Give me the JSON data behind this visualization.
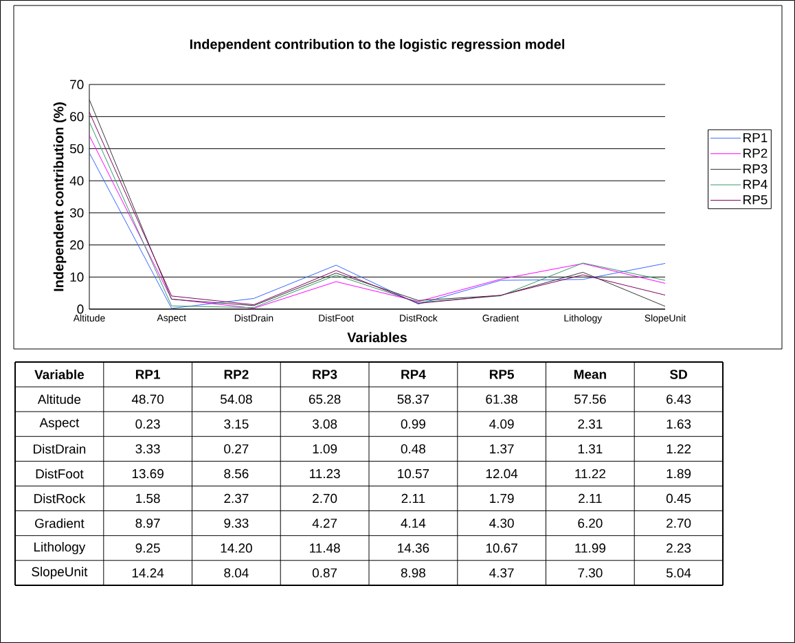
{
  "chart_data": [
    {
      "type": "line",
      "title": "Independent contribution  to the logistic regression model",
      "xlabel": "Variables",
      "ylabel": "Independent contribution (%)",
      "categories": [
        "Altitude",
        "Aspect",
        "DistDrain",
        "DistFoot",
        "DistRock",
        "Gradient",
        "Lithology",
        "SlopeUnit"
      ],
      "ylim": [
        0,
        70
      ],
      "yticks": [
        0,
        10,
        20,
        30,
        40,
        50,
        60,
        70
      ],
      "grid": "y",
      "legend": "right",
      "marker": "none",
      "line_style": "solid",
      "series": [
        {
          "name": "RP1",
          "color": "#3366ff",
          "values": [
            48.7,
            0.23,
            3.33,
            13.69,
            1.58,
            8.97,
            9.25,
            14.24
          ]
        },
        {
          "name": "RP2",
          "color": "#ff00ff",
          "values": [
            54.08,
            3.15,
            0.27,
            8.56,
            2.37,
            9.33,
            14.2,
            8.04
          ]
        },
        {
          "name": "RP3",
          "color": "#333333",
          "values": [
            65.28,
            3.08,
            1.09,
            11.23,
            2.7,
            4.27,
            11.48,
            0.87
          ]
        },
        {
          "name": "RP4",
          "color": "#339966",
          "values": [
            58.37,
            0.99,
            0.48,
            10.57,
            2.11,
            4.14,
            14.36,
            8.98
          ]
        },
        {
          "name": "RP5",
          "color": "#800060",
          "values": [
            61.38,
            4.09,
            1.37,
            12.04,
            1.79,
            4.3,
            10.67,
            4.37
          ]
        }
      ]
    },
    {
      "type": "other",
      "xlabel": "Variable",
      "categories": [
        "Altitude",
        "Aspect",
        "DistDrain",
        "DistFoot",
        "DistRock",
        "Gradient",
        "Lithology",
        "SlopeUnit"
      ],
      "series": [
        {
          "name": "RP1",
          "values": [
            48.7,
            0.23,
            3.33,
            13.69,
            1.58,
            8.97,
            9.25,
            14.24
          ],
          "value_labels": [
            "48.70",
            "0.23",
            "3.33",
            "13.69",
            "1.58",
            "8.97",
            "9.25",
            "14.24"
          ]
        },
        {
          "name": "RP2",
          "values": [
            54.08,
            3.15,
            0.27,
            8.56,
            2.37,
            9.33,
            14.2,
            8.04
          ],
          "value_labels": [
            "54.08",
            "3.15",
            "0.27",
            "8.56",
            "2.37",
            "9.33",
            "14.20",
            "8.04"
          ]
        },
        {
          "name": "RP3",
          "values": [
            65.28,
            3.08,
            1.09,
            11.23,
            2.7,
            4.27,
            11.48,
            0.87
          ],
          "value_labels": [
            "65.28",
            "3.08",
            "1.09",
            "11.23",
            "2.70",
            "4.27",
            "11.48",
            "0.87"
          ]
        },
        {
          "name": "RP4",
          "values": [
            58.37,
            0.99,
            0.48,
            10.57,
            2.11,
            4.14,
            14.36,
            8.98
          ],
          "value_labels": [
            "58.37",
            "0.99",
            "0.48",
            "10.57",
            "2.11",
            "4.14",
            "14.36",
            "8.98"
          ]
        },
        {
          "name": "RP5",
          "values": [
            61.38,
            4.09,
            1.37,
            12.04,
            1.79,
            4.3,
            10.67,
            4.37
          ],
          "value_labels": [
            "61.38",
            "4.09",
            "1.37",
            "12.04",
            "1.79",
            "4.30",
            "10.67",
            "4.37"
          ]
        },
        {
          "name": "Mean",
          "values": [
            57.56,
            2.31,
            1.31,
            11.22,
            2.11,
            6.2,
            11.99,
            7.3
          ],
          "value_labels": [
            "57.56",
            "2.31",
            "1.31",
            "11.22",
            "2.11",
            "6.20",
            "11.99",
            "7.30"
          ]
        },
        {
          "name": "SD",
          "values": [
            6.43,
            1.63,
            1.22,
            1.89,
            0.45,
            2.7,
            2.23,
            5.04
          ],
          "value_labels": [
            "6.43",
            "1.63",
            "1.22",
            "1.89",
            "0.45",
            "2.70",
            "2.23",
            "5.04"
          ]
        }
      ]
    }
  ]
}
